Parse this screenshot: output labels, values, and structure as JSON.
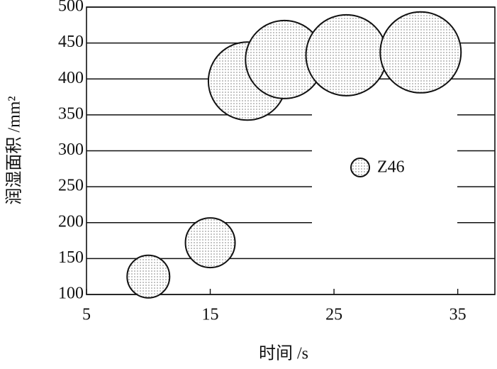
{
  "chart_data": {
    "type": "bubble",
    "x_label": "时间 /s",
    "y_label": "润湿面积 /mm²",
    "xlim": [
      5,
      38
    ],
    "xticks": [
      5,
      15,
      25,
      35
    ],
    "ylim": [
      100,
      500
    ],
    "yticks": [
      100,
      150,
      200,
      250,
      300,
      350,
      400,
      450,
      500
    ],
    "grid": true,
    "legend": "center right",
    "series": [
      {
        "name": "Z46",
        "color": "#9a9a9a",
        "x": [
          10,
          15,
          18,
          21,
          26,
          32
        ],
        "values": [
          125,
          172,
          397,
          427,
          433,
          437
        ],
        "sizes": [
          30,
          35,
          55,
          55,
          57,
          57
        ]
      }
    ]
  }
}
